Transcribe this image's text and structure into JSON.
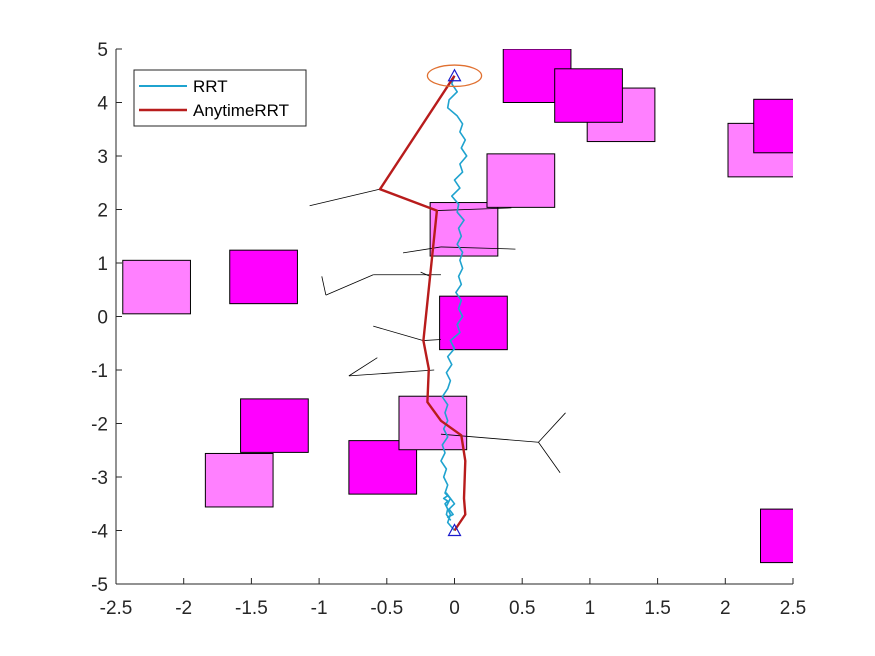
{
  "chart_data": {
    "type": "line",
    "title": "",
    "xlabel": "",
    "ylabel": "",
    "xlim": [
      -2.5,
      2.5
    ],
    "ylim": [
      -5,
      5
    ],
    "xticks": [
      "-2.5",
      "-2",
      "-1.5",
      "-1",
      "-0.5",
      "0",
      "0.5",
      "1",
      "1.5",
      "2",
      "2.5"
    ],
    "yticks": [
      "5",
      "4",
      "3",
      "2",
      "1",
      "0",
      "-1",
      "-2",
      "-3",
      "-4",
      "-5"
    ],
    "grid": false,
    "legend": {
      "placement": "top-left",
      "entries": [
        "RRT",
        "AnytimeRRT"
      ]
    },
    "colors": {
      "rrt": "#1fa3cf",
      "anytime": "#b81c1c",
      "obstacle_light": "#ff80ff",
      "obstacle_dark": "#ff00ff",
      "tree": "#000000",
      "goal_ellipse": "#e07030",
      "marker": "#1a1acc",
      "axis": "#262626"
    },
    "series": [
      {
        "name": "RRT",
        "x": [
          0.0,
          -0.02,
          0.02,
          -0.04,
          -0.05,
          0.02,
          0.06,
          0.04,
          0.08,
          0.05,
          0.09,
          0.04,
          0.06,
          0.0,
          0.04,
          -0.02,
          0.03,
          0.02,
          0.07,
          0.03,
          0.05,
          0.02,
          0.06,
          0.04,
          0.06,
          0.03,
          0.05,
          0.01,
          0.05,
          0.03,
          0.06,
          0.02,
          0.04,
          -0.03,
          0.0,
          -0.05,
          -0.02,
          -0.06,
          -0.03,
          -0.05,
          -0.09,
          -0.05,
          -0.07,
          -0.05,
          -0.08,
          -0.05,
          -0.09,
          -0.07,
          -0.1,
          -0.06,
          -0.08,
          -0.05,
          -0.07,
          -0.03,
          0.0,
          -0.04,
          -0.01,
          -0.05,
          -0.03,
          -0.06,
          -0.05,
          -0.07,
          -0.05,
          -0.08,
          -0.05,
          -0.06,
          -0.03,
          -0.06,
          -0.03,
          -0.05,
          0.0
        ],
        "y": [
          4.5,
          4.35,
          4.2,
          4.05,
          3.9,
          3.75,
          3.6,
          3.45,
          3.3,
          3.15,
          3.0,
          2.85,
          2.7,
          2.55,
          2.4,
          2.25,
          2.1,
          1.95,
          1.8,
          1.65,
          1.5,
          1.35,
          1.2,
          1.05,
          0.9,
          0.75,
          0.6,
          0.45,
          0.3,
          0.15,
          0.0,
          -0.15,
          -0.3,
          -0.45,
          -0.6,
          -0.75,
          -0.9,
          -1.05,
          -1.2,
          -1.35,
          -1.5,
          -1.65,
          -1.8,
          -1.95,
          -2.1,
          -2.25,
          -2.4,
          -2.55,
          -2.7,
          -2.85,
          -3.0,
          -3.15,
          -3.3,
          -3.4,
          -3.5,
          -3.6,
          -3.7,
          -3.75,
          -3.8,
          -3.7,
          -3.6,
          -3.5,
          -3.45,
          -3.4,
          -3.35,
          -3.3,
          -3.4,
          -3.55,
          -3.7,
          -3.85,
          -4.0
        ]
      },
      {
        "name": "AnytimeRRT",
        "x": [
          0.0,
          -0.55,
          -0.13,
          -0.23,
          -0.19,
          -0.2,
          -0.1,
          0.05,
          0.08,
          0.07,
          0.08,
          0.0
        ],
        "y": [
          4.5,
          2.38,
          1.98,
          -0.45,
          -0.98,
          -1.6,
          -1.95,
          -2.22,
          -2.7,
          -3.4,
          -3.7,
          -4.0
        ]
      }
    ],
    "obstacles": [
      {
        "x0": -2.45,
        "x1": -1.95,
        "y0": 0.05,
        "y1": 1.05,
        "shade": "light"
      },
      {
        "x0": -1.66,
        "x1": -1.16,
        "y0": 0.24,
        "y1": 1.24,
        "shade": "dark"
      },
      {
        "x0": -1.58,
        "x1": -1.08,
        "y0": -2.54,
        "y1": -1.54,
        "shade": "dark"
      },
      {
        "x0": -1.84,
        "x1": -1.34,
        "y0": -3.56,
        "y1": -2.56,
        "shade": "light"
      },
      {
        "x0": -0.78,
        "x1": -0.28,
        "y0": -3.32,
        "y1": -2.32,
        "shade": "dark"
      },
      {
        "x0": -0.41,
        "x1": 0.09,
        "y0": -2.49,
        "y1": -1.49,
        "shade": "light"
      },
      {
        "x0": -0.11,
        "x1": 0.39,
        "y0": -0.62,
        "y1": 0.38,
        "shade": "dark"
      },
      {
        "x0": -0.18,
        "x1": 0.32,
        "y0": 1.13,
        "y1": 2.13,
        "shade": "light"
      },
      {
        "x0": 0.24,
        "x1": 0.74,
        "y0": 2.04,
        "y1": 3.04,
        "shade": "light"
      },
      {
        "x0": 0.36,
        "x1": 0.86,
        "y0": 4.0,
        "y1": 5.0,
        "shade": "dark"
      },
      {
        "x0": 0.98,
        "x1": 1.48,
        "y0": 3.27,
        "y1": 4.27,
        "shade": "light"
      },
      {
        "x0": 0.74,
        "x1": 1.24,
        "y0": 3.63,
        "y1": 4.63,
        "shade": "dark"
      },
      {
        "x0": 2.02,
        "x1": 2.52,
        "y0": 2.61,
        "y1": 3.61,
        "shade": "light"
      },
      {
        "x0": 2.21,
        "x1": 2.71,
        "y0": 3.06,
        "y1": 4.06,
        "shade": "dark"
      },
      {
        "x0": 2.26,
        "x1": 2.76,
        "y0": -4.6,
        "y1": -3.6,
        "shade": "dark"
      }
    ],
    "tree_edges": [
      [
        [
          -1.07,
          2.07
        ],
        [
          -0.55,
          2.38
        ]
      ],
      [
        [
          -0.13,
          1.98
        ],
        [
          0.42,
          2.03
        ]
      ],
      [
        [
          -0.38,
          1.19
        ],
        [
          -0.1,
          1.3
        ]
      ],
      [
        [
          -0.1,
          1.3
        ],
        [
          0.45,
          1.26
        ]
      ],
      [
        [
          -0.1,
          0.78
        ],
        [
          -0.6,
          0.78
        ]
      ],
      [
        [
          -0.6,
          0.78
        ],
        [
          -0.95,
          0.4
        ]
      ],
      [
        [
          -0.95,
          0.4
        ],
        [
          -0.98,
          0.75
        ]
      ],
      [
        [
          -0.25,
          0.83
        ],
        [
          -0.18,
          0.75
        ]
      ],
      [
        [
          -0.6,
          -0.18
        ],
        [
          -0.23,
          -0.45
        ]
      ],
      [
        [
          -0.23,
          -0.45
        ],
        [
          -0.1,
          -0.43
        ]
      ],
      [
        [
          -0.78,
          -1.11
        ],
        [
          -0.15,
          -1.0
        ]
      ],
      [
        [
          -0.78,
          -1.11
        ],
        [
          -0.57,
          -0.77
        ]
      ],
      [
        [
          -0.1,
          -2.2
        ],
        [
          0.62,
          -2.35
        ]
      ],
      [
        [
          0.62,
          -2.35
        ],
        [
          0.82,
          -1.8
        ]
      ],
      [
        [
          0.62,
          -2.35
        ],
        [
          0.78,
          -2.92
        ]
      ]
    ],
    "start": {
      "x": 0,
      "y": -4
    },
    "goal": {
      "x": 0,
      "y": 4.5
    },
    "goal_region": {
      "x": 0,
      "y": 4.5,
      "rx": 0.2,
      "ry": 0.2
    }
  }
}
